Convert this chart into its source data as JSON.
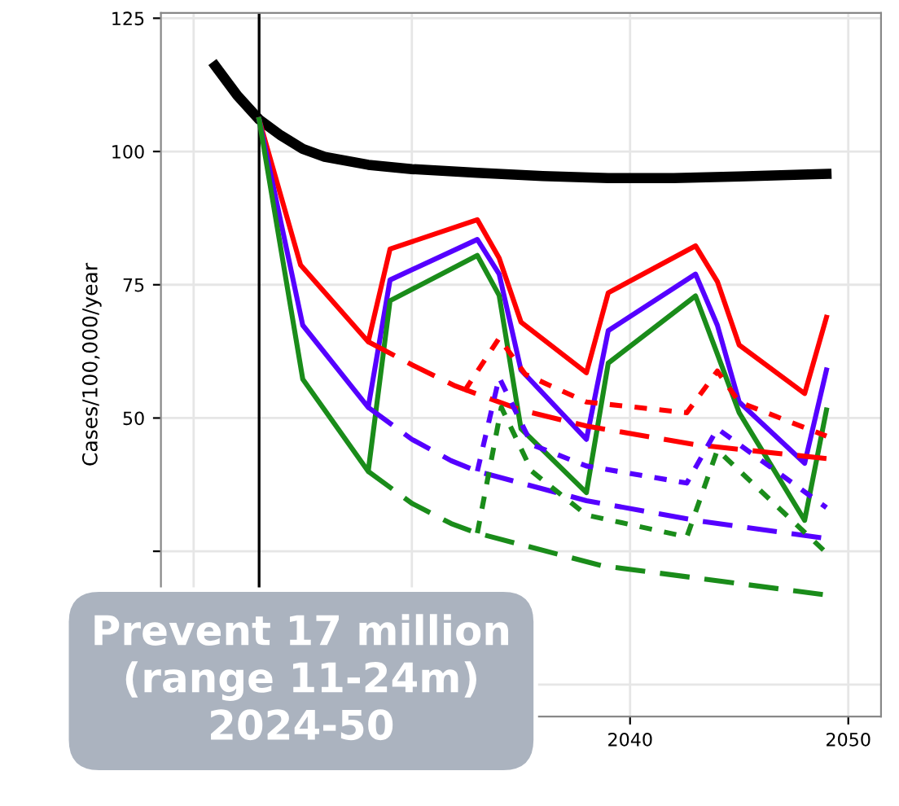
{
  "chart_data": {
    "type": "line",
    "ylabel": "Cases/100,000/year",
    "annotations": [
      "Prevent 17 million\n(range 11-24m)\n2024-50"
    ],
    "xlim": [
      2018.5,
      2051.5
    ],
    "ylim": [
      -6,
      126
    ],
    "xticks": [
      {
        "value": 2020,
        "label": null
      },
      {
        "value": 2030,
        "label": null
      },
      2040,
      2050
    ],
    "yticks": [
      {
        "value": 0,
        "label": null
      },
      {
        "value": 25,
        "label": null
      },
      50,
      75,
      100,
      125
    ],
    "grid": true,
    "legend": false,
    "marker": "none",
    "ref_lines": [
      {
        "axis": "x",
        "value": 2023,
        "color": "#000000"
      }
    ],
    "series": [
      {
        "color": "#000000",
        "line_style": "solid",
        "x": [
          2021,
          2022,
          2023,
          2024,
          2025,
          2026,
          2028,
          2030,
          2033,
          2036,
          2039,
          2042,
          2045,
          2049
        ],
        "values": [
          116,
          110.5,
          106,
          103,
          100.5,
          99,
          97.5,
          96.7,
          96,
          95.4,
          95,
          95,
          95.3,
          95.8
        ]
      },
      {
        "color": "#ff0000",
        "line_style": "solid",
        "x": [
          2023,
          2024.9,
          2028,
          2029,
          2033,
          2034,
          2035,
          2038,
          2039,
          2043,
          2044,
          2045,
          2048,
          2049
        ],
        "values": [
          106,
          78.7,
          64.3,
          81.7,
          87.2,
          80,
          68,
          58.5,
          73.5,
          82.3,
          75.6,
          63.7,
          54.6,
          68.9
        ]
      },
      {
        "color": "#5500ff",
        "line_style": "solid",
        "x": [
          2023,
          2025,
          2028,
          2029,
          2033,
          2034,
          2035,
          2038,
          2039,
          2043,
          2044,
          2045,
          2048,
          2049
        ],
        "values": [
          106,
          67.4,
          52,
          75.9,
          83.5,
          77,
          59,
          46,
          66.4,
          77,
          67.4,
          53,
          41.5,
          59
        ]
      },
      {
        "color": "#1a8c1a",
        "line_style": "solid",
        "x": [
          2023,
          2025,
          2028,
          2029,
          2033,
          2034,
          2035,
          2038,
          2039,
          2043,
          2044,
          2045,
          2048,
          2049
        ],
        "values": [
          106,
          57.3,
          40,
          72,
          80.5,
          73,
          48,
          36,
          60.3,
          72.9,
          62,
          51,
          30.8,
          51.5
        ]
      },
      {
        "color": "#ff0000",
        "line_style": "dashed",
        "x": [
          2028,
          2030,
          2032,
          2035,
          2038,
          2043,
          2049
        ],
        "values": [
          64.3,
          60,
          56,
          51.5,
          48.5,
          45,
          42.4
        ]
      },
      {
        "color": "#5500ff",
        "line_style": "dashed",
        "x": [
          2028,
          2030,
          2031.8,
          2033,
          2038,
          2043,
          2049
        ],
        "values": [
          52,
          46,
          42,
          40,
          34.5,
          30.8,
          27.4
        ]
      },
      {
        "color": "#1a8c1a",
        "line_style": "dashed",
        "x": [
          2028,
          2030,
          2031.8,
          2033,
          2038.7,
          2049
        ],
        "values": [
          40,
          34,
          30.2,
          28.4,
          22.3,
          16.8
        ]
      },
      {
        "color": "#ff0000",
        "line_style": "dotted",
        "x": [
          2032.4,
          2034,
          2035.2,
          2038,
          2042.6,
          2044,
          2045,
          2049
        ],
        "values": [
          55,
          65,
          58.2,
          53,
          51,
          58.8,
          53,
          46.6
        ]
      },
      {
        "color": "#5500ff",
        "line_style": "dotted",
        "x": [
          2033,
          2034,
          2035.5,
          2038,
          2042.6,
          2044,
          2049
        ],
        "values": [
          40,
          57.6,
          45,
          41,
          37.8,
          48,
          33.2
        ]
      },
      {
        "color": "#1a8c1a",
        "line_style": "dotted",
        "x": [
          2033,
          2034.1,
          2035.5,
          2038,
          2042.6,
          2044,
          2049
        ],
        "values": [
          28.4,
          52,
          40,
          31.8,
          27.7,
          44,
          24.7
        ]
      }
    ]
  }
}
